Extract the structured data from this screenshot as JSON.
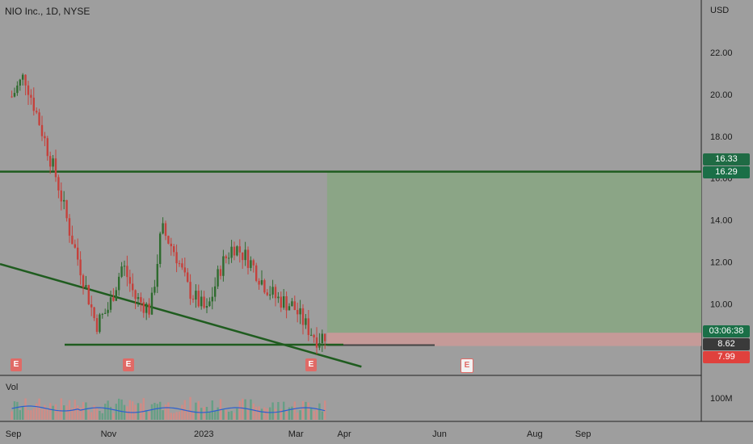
{
  "header": {
    "title": "NIO Inc., 1D, NYSE",
    "currency": "USD",
    "volume_label": "Vol"
  },
  "price_tags": {
    "resistance_a": "16.33",
    "resistance_b": "16.29",
    "countdown": "03:06:38",
    "current": "8.62",
    "stop": "7.99"
  },
  "earnings_marker": "E",
  "colors": {
    "background": "#9e9e9e",
    "up": "#2e6b2e",
    "down": "#c5413c",
    "trend_line": "#1f5c1f",
    "target_zone": "#8aa585",
    "stop_zone": "#c79a98",
    "tag_green": "#1f6b44",
    "tag_teal": "#1a6f47",
    "tag_red": "#e0413d",
    "tag_dark": "#3a3a3a",
    "volume_ma": "#2a5fd0"
  },
  "chart_data": {
    "type": "candlestick",
    "title": "NIO Inc., 1D, NYSE",
    "x_ticks": [
      "Sep",
      "Nov",
      "2023",
      "Mar",
      "Apr",
      "Jun",
      "Aug",
      "Sep"
    ],
    "y_ticks": [
      "22.00",
      "20.00",
      "18.00",
      "16.00",
      "14.00",
      "12.00",
      "10.00"
    ],
    "ylim": [
      7.0,
      24.0
    ],
    "volume_ticks": [
      "100M"
    ],
    "approximate_closes": [
      {
        "date": "2022-08-31",
        "close": 19.9
      },
      {
        "date": "2022-09-08",
        "close": 20.9
      },
      {
        "date": "2022-09-15",
        "close": 19.3
      },
      {
        "date": "2022-09-22",
        "close": 17.6
      },
      {
        "date": "2022-09-29",
        "close": 15.9
      },
      {
        "date": "2022-10-07",
        "close": 13.5
      },
      {
        "date": "2022-10-14",
        "close": 11.7
      },
      {
        "date": "2022-10-24",
        "close": 9.0
      },
      {
        "date": "2022-11-01",
        "close": 9.8
      },
      {
        "date": "2022-11-10",
        "close": 11.9
      },
      {
        "date": "2022-11-18",
        "close": 10.3
      },
      {
        "date": "2022-11-28",
        "close": 9.7
      },
      {
        "date": "2022-12-05",
        "close": 13.6
      },
      {
        "date": "2022-12-14",
        "close": 12.4
      },
      {
        "date": "2022-12-22",
        "close": 10.7
      },
      {
        "date": "2023-01-03",
        "close": 9.6
      },
      {
        "date": "2023-01-12",
        "close": 11.8
      },
      {
        "date": "2023-01-20",
        "close": 12.8
      },
      {
        "date": "2023-01-30",
        "close": 12.1
      },
      {
        "date": "2023-02-08",
        "close": 11.0
      },
      {
        "date": "2023-02-16",
        "close": 10.3
      },
      {
        "date": "2023-02-27",
        "close": 9.9
      },
      {
        "date": "2023-03-08",
        "close": 8.9
      },
      {
        "date": "2023-03-15",
        "close": 8.3
      },
      {
        "date": "2023-03-21",
        "close": 8.62
      }
    ],
    "horizontal_lines": [
      {
        "price": 16.31
      },
      {
        "price": 8.05
      }
    ],
    "trend_line": {
      "from": {
        "date": "2022-08-31",
        "price": 11.9
      },
      "to": {
        "date": "2023-04-12",
        "price": 7.0
      }
    },
    "position": {
      "entry": 8.62,
      "target": 16.31,
      "stop": 7.99,
      "start": "2023-03-21",
      "end": "2023-09-30"
    },
    "earnings_dates": [
      "2022-09-07",
      "2022-11-10",
      "2023-03-01",
      "2023-06-09"
    ]
  }
}
